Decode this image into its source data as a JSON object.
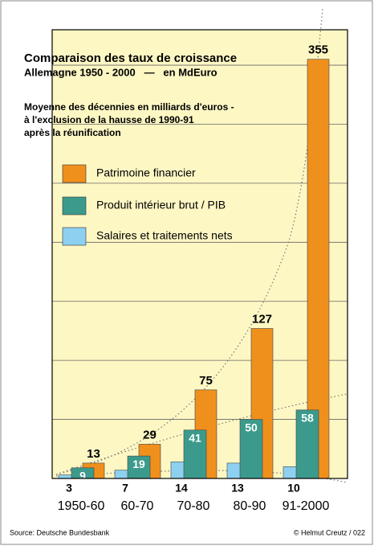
{
  "chart_data": {
    "type": "bar",
    "title": "Comparaison des taux de croissance",
    "subtitle": "Allemagne 1950 - 2000   —   en MdEuro",
    "note": [
      "Moyenne des décennies en milliards d'euros -",
      "à l'exclusion de la hausse de 1990-91",
      "après la réunification"
    ],
    "categories": [
      "1950-60",
      "60-70",
      "70-80",
      "80-90",
      "91-2000"
    ],
    "series": [
      {
        "name": "Patrimoine financier",
        "color": "#f0901c",
        "values": [
          13,
          29,
          75,
          127,
          355
        ]
      },
      {
        "name": "Produit intérieur brut / PIB",
        "color": "#3c9a8c",
        "values": [
          9,
          19,
          41,
          50,
          58
        ]
      },
      {
        "name": "Salaires et traitements nets",
        "color": "#8ed0f0",
        "values": [
          3,
          7,
          14,
          13,
          10
        ]
      }
    ],
    "ylim": [
      0,
      380
    ],
    "yticks": [
      0,
      50,
      100,
      150,
      200,
      250,
      300,
      350
    ],
    "grid": true,
    "source": "Source: Deutsche Bundesbank",
    "credit": "© Helmut Creutz / 022"
  }
}
